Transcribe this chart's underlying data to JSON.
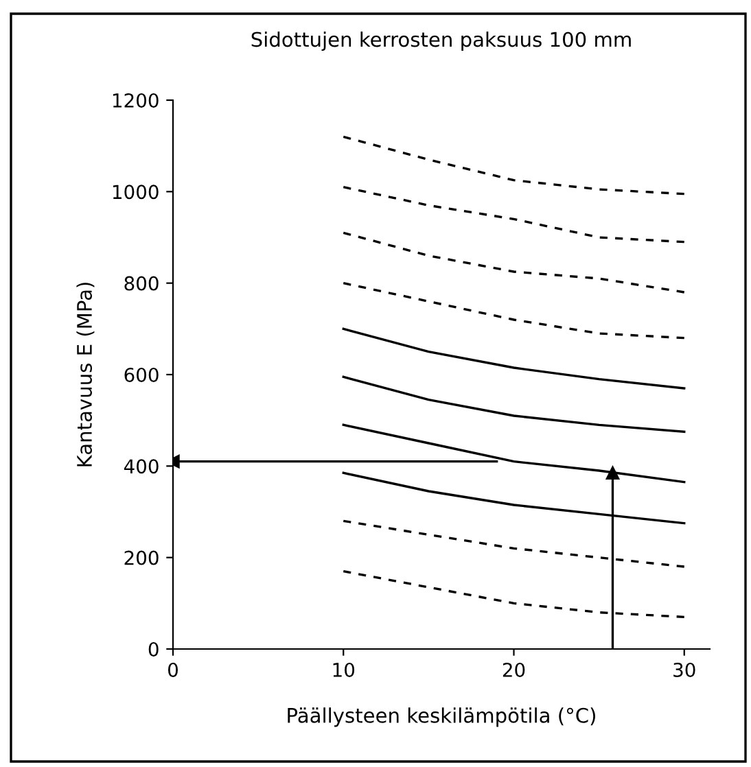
{
  "chart_data": {
    "type": "line",
    "title": "Sidottujen kerrosten paksuus 100 mm",
    "xlabel": "Päällysteen keskilämpötila (°C)",
    "ylabel": "Kantavuus E (MPa)",
    "x": [
      10,
      15,
      20,
      25,
      30
    ],
    "xlim": [
      0,
      31.5
    ],
    "xticks": [
      0,
      10,
      20,
      30
    ],
    "ylim": [
      0,
      1200
    ],
    "yticks": [
      0,
      200,
      400,
      600,
      800,
      1000,
      1200
    ],
    "grid": false,
    "marker": "none",
    "series": [
      {
        "color": "#000000",
        "line_style": "dashed",
        "values": [
          1120,
          1070,
          1025,
          1005,
          995
        ]
      },
      {
        "color": "#000000",
        "line_style": "dashed",
        "values": [
          1010,
          970,
          940,
          900,
          890
        ]
      },
      {
        "color": "#000000",
        "line_style": "dashed",
        "values": [
          910,
          860,
          825,
          810,
          780
        ]
      },
      {
        "color": "#000000",
        "line_style": "dashed",
        "values": [
          800,
          760,
          720,
          690,
          680
        ]
      },
      {
        "color": "#000000",
        "line_style": "solid",
        "values": [
          700,
          650,
          615,
          590,
          570
        ]
      },
      {
        "color": "#000000",
        "line_style": "solid",
        "values": [
          595,
          545,
          510,
          490,
          475
        ]
      },
      {
        "color": "#000000",
        "line_style": "solid",
        "values": [
          490,
          450,
          410,
          390,
          365
        ]
      },
      {
        "color": "#000000",
        "line_style": "solid",
        "values": [
          385,
          345,
          315,
          295,
          275
        ]
      },
      {
        "color": "#000000",
        "line_style": "dashed",
        "values": [
          280,
          250,
          220,
          200,
          180
        ]
      },
      {
        "color": "#000000",
        "line_style": "dashed",
        "values": [
          170,
          135,
          100,
          80,
          70
        ]
      },
      {
        "color": "#000000",
        "line_style": "solid",
        "marker": "triangle",
        "x": [
          25.8,
          25.8
        ],
        "values": [
          0,
          385
        ]
      },
      {
        "color": "#000000",
        "line_style": "solid",
        "marker": "triangle",
        "x": [
          19,
          0
        ],
        "values": [
          410,
          410
        ]
      }
    ]
  }
}
